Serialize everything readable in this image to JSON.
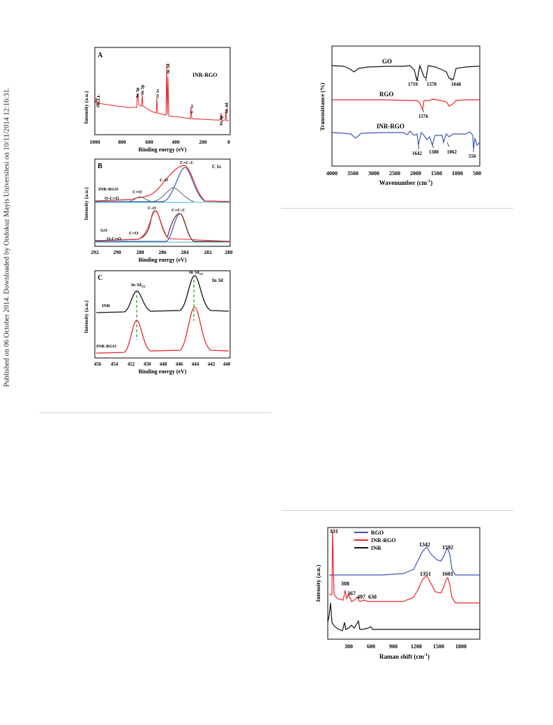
{
  "margin_note": "Published on 06 October 2014. Downloaded by Ondokuz Mayis Universitesi on 10/11/2014 12:16:31.",
  "xps": {
    "panel_a": {
      "label": "A",
      "sample": "INR-RGO",
      "ylabel": "Intensity (a.u.)",
      "xlabel": "Binding energy (eV)",
      "xticks": [
        "1000",
        "800",
        "600",
        "400",
        "200",
        "0"
      ],
      "peaks": [
        "OKLL",
        "In 3p",
        "In 3p",
        "O 1s",
        "In 3d",
        "C 1s",
        "In 4p",
        "In 4d"
      ]
    },
    "panel_b": {
      "label": "B",
      "region": "C 1s",
      "ylabel": "Intensity (a.u.)",
      "xlabel": "Binding energy (eV)",
      "xticks": [
        "292",
        "290",
        "288",
        "286",
        "284",
        "282",
        "280"
      ],
      "samples": [
        "INR-RGO",
        "GO"
      ],
      "components": [
        "C=C-C",
        "C-O",
        "C=O",
        "O-C=O"
      ]
    },
    "panel_c": {
      "label": "C",
      "region": "In 3d",
      "ylabel": "Intensity (a.u.)",
      "xlabel": "Binding energy (eV)",
      "xticks": [
        "456",
        "454",
        "452",
        "450",
        "448",
        "446",
        "444",
        "442",
        "440"
      ],
      "samples": [
        "INR",
        "INR-RGO"
      ],
      "peaks": [
        "In 3d",
        "In 3d"
      ],
      "peak_subscripts": [
        "3/2",
        "5/2"
      ]
    }
  },
  "ftir": {
    "ylabel": "Transmittance (%)",
    "xlabel": "Wavenumber (cm",
    "xlabel_sup": "-1",
    "xlabel_end": ")",
    "xticks": [
      "4000",
      "3500",
      "3000",
      "2500",
      "2000",
      "1500",
      "1000",
      "500"
    ],
    "series": [
      "GO",
      "RGO",
      "INR-RGO"
    ],
    "annotations": [
      "1719",
      "1578",
      "1048",
      "1576",
      "1642",
      "1388",
      "1062",
      "556"
    ],
    "colors": {
      "GO": "#111111",
      "RGO": "#e8262b",
      "INR-RGO": "#3a57b5"
    }
  },
  "raman": {
    "ylabel": "Intensity (a.u.)",
    "xlabel": "Raman shift (cm",
    "xlabel_sup": "-1",
    "xlabel_end": ")",
    "xticks": [
      "300",
      "600",
      "900",
      "1200",
      "1500",
      "1800"
    ],
    "legend": [
      "RGO",
      "INR-RGO",
      "INR"
    ],
    "annotations": [
      "131",
      "1342",
      "1592",
      "308",
      "1351",
      "1601",
      "367",
      "497",
      "630"
    ],
    "colors": {
      "RGO": "#3a57b5",
      "INR-RGO": "#e8262b",
      "INR": "#111111"
    }
  },
  "chart_data": [
    {
      "type": "line",
      "title": "",
      "xlabel": "Binding energy (eV)",
      "ylabel": "Intensity (a.u.)",
      "xlim": [
        1000,
        0
      ],
      "series": [
        {
          "name": "INR-RGO",
          "peaks_eV": [
            978,
            703,
            665,
            531,
            444,
            285,
            77,
            17
          ]
        }
      ]
    },
    {
      "type": "line",
      "xlabel": "Binding energy (eV)",
      "ylabel": "Intensity (a.u.)",
      "xlim": [
        292,
        280
      ],
      "series": [
        {
          "name": "INR-RGO",
          "components_eV": {
            "C=C-C": 284.6,
            "C-O": 285.8,
            "C=O": 287.8,
            "O-C=O": 289.3
          }
        },
        {
          "name": "GO",
          "components_eV": {
            "C-O": 286.8,
            "C=C-C": 284.8,
            "C=O": 288.1,
            "O-C=O": 289.5
          }
        }
      ]
    },
    {
      "type": "line",
      "xlabel": "Binding energy (eV)",
      "ylabel": "Intensity (a.u.)",
      "xlim": [
        456,
        440
      ],
      "series": [
        {
          "name": "INR",
          "peaks_eV": [
            451.5,
            444.0
          ]
        },
        {
          "name": "INR-RGO",
          "peaks_eV": [
            451.5,
            444.0
          ]
        }
      ]
    },
    {
      "type": "line",
      "xlabel": "Wavenumber (cm-1)",
      "ylabel": "Transmittance (%)",
      "xlim": [
        4000,
        500
      ],
      "series": [
        {
          "name": "GO",
          "bands_cm1": [
            1719,
            1578,
            1048
          ]
        },
        {
          "name": "RGO",
          "bands_cm1": [
            1576
          ]
        },
        {
          "name": "INR-RGO",
          "bands_cm1": [
            1642,
            1388,
            1062,
            556
          ]
        }
      ]
    },
    {
      "type": "line",
      "xlabel": "Raman shift (cm-1)",
      "ylabel": "Intensity (a.u.)",
      "xlim": [
        0,
        2050
      ],
      "series": [
        {
          "name": "RGO",
          "peaks_cm1": [
            1342,
            1592
          ]
        },
        {
          "name": "INR-RGO",
          "peaks_cm1": [
            131,
            308,
            367,
            497,
            630,
            1351,
            1601
          ]
        },
        {
          "name": "INR",
          "peaks_cm1": [
            131,
            308,
            367,
            497,
            630
          ]
        }
      ]
    }
  ]
}
